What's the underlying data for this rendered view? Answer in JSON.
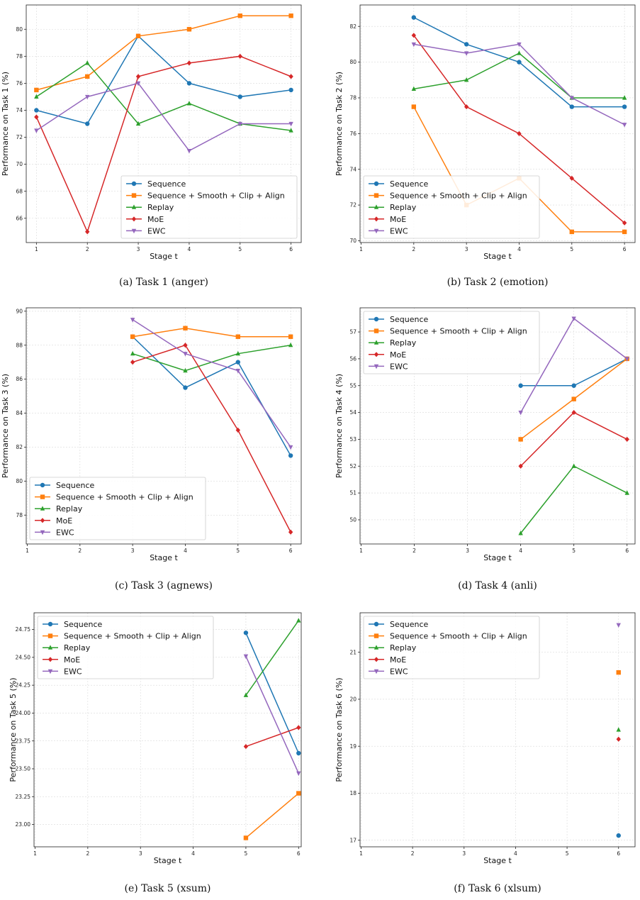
{
  "legend": [
    "Sequence",
    "Sequence + Smooth + Clip + Align",
    "Replay",
    "MoE",
    "EWC"
  ],
  "colors": [
    "#1f77b4",
    "#ff7f0e",
    "#2ca02c",
    "#d62728",
    "#9467bd"
  ],
  "markers": [
    "circle",
    "square",
    "triangle-up",
    "diamond",
    "triangle-down"
  ],
  "xlabel": "Stage t",
  "chart_data": [
    {
      "type": "line",
      "caption": "(a) Task 1 (anger)",
      "ylabel": "Performance on Task 1 (%)",
      "x": [
        1,
        2,
        3,
        4,
        5,
        6
      ],
      "xticks": [
        1,
        2,
        3,
        4,
        5,
        6
      ],
      "xlim": [
        0.8,
        6.2
      ],
      "ylim": [
        64.2,
        81.8
      ],
      "yticks": [
        66,
        68,
        70,
        72,
        74,
        76,
        78,
        80
      ],
      "ytick_labels": [
        "66",
        "68",
        "70",
        "72",
        "74",
        "76",
        "78",
        "80"
      ],
      "legend_position": "lower-right",
      "series": [
        {
          "name": "Sequence",
          "values": [
            74,
            73,
            79.5,
            76,
            75,
            75.5
          ]
        },
        {
          "name": "Sequence + Smooth + Clip + Align",
          "values": [
            75.5,
            76.5,
            79.5,
            80,
            81,
            81
          ]
        },
        {
          "name": "Replay",
          "values": [
            75,
            77.5,
            73,
            74.5,
            73,
            72.5
          ]
        },
        {
          "name": "MoE",
          "values": [
            73.5,
            65,
            76.5,
            77.5,
            78,
            76.5
          ]
        },
        {
          "name": "EWC",
          "values": [
            72.5,
            75,
            76,
            71,
            73,
            73
          ]
        }
      ]
    },
    {
      "type": "line",
      "caption": "(b) Task 2 (emotion)",
      "ylabel": "Performance on Task 2 (%)",
      "x": [
        2,
        3,
        4,
        5,
        6
      ],
      "xticks": [
        1,
        2,
        3,
        4,
        5,
        6
      ],
      "xlim": [
        0.98,
        6.2
      ],
      "ylim": [
        69.9,
        83.2
      ],
      "yticks": [
        70,
        72,
        74,
        76,
        78,
        80,
        82
      ],
      "ytick_labels": [
        "70",
        "72",
        "74",
        "76",
        "78",
        "80",
        "82"
      ],
      "legend_position": "lower-left",
      "series": [
        {
          "name": "Sequence",
          "values": [
            82.5,
            81,
            80,
            77.5,
            77.5
          ]
        },
        {
          "name": "Sequence + Smooth + Clip + Align",
          "values": [
            77.5,
            72,
            73.5,
            70.5,
            70.5
          ]
        },
        {
          "name": "Replay",
          "values": [
            78.5,
            79,
            80.5,
            78,
            78
          ]
        },
        {
          "name": "MoE",
          "values": [
            81.5,
            77.5,
            76,
            73.5,
            71
          ]
        },
        {
          "name": "EWC",
          "values": [
            81,
            80.5,
            81,
            78,
            76.5
          ]
        }
      ]
    },
    {
      "type": "line",
      "caption": "(c) Task 3 (agnews)",
      "ylabel": "Performance on Task 3 (%)",
      "x": [
        3,
        4,
        5,
        6
      ],
      "xticks": [
        1,
        2,
        3,
        4,
        5,
        6
      ],
      "xlim": [
        0.98,
        6.2
      ],
      "ylim": [
        76.3,
        90.2
      ],
      "yticks": [
        78,
        80,
        82,
        84,
        86,
        88,
        90
      ],
      "ytick_labels": [
        "78",
        "80",
        "82",
        "84",
        "86",
        "88",
        "90"
      ],
      "legend_position": "lower-left",
      "series": [
        {
          "name": "Sequence",
          "values": [
            88.5,
            85.5,
            87,
            81.5
          ]
        },
        {
          "name": "Sequence + Smooth + Clip + Align",
          "values": [
            88.5,
            89,
            88.5,
            88.5
          ]
        },
        {
          "name": "Replay",
          "values": [
            87.5,
            86.5,
            87.5,
            88
          ]
        },
        {
          "name": "MoE",
          "values": [
            87,
            88,
            83,
            77
          ]
        },
        {
          "name": "EWC",
          "values": [
            89.5,
            87.5,
            86.5,
            82
          ]
        }
      ]
    },
    {
      "type": "line",
      "caption": "(d) Task 4 (anli)",
      "ylabel": "Performance on Task 4 (%)",
      "x": [
        4,
        5,
        6
      ],
      "xticks": [
        1,
        2,
        3,
        4,
        5,
        6
      ],
      "xlim": [
        0.98,
        6.15
      ],
      "ylim": [
        49.1,
        57.9
      ],
      "yticks": [
        50,
        51,
        52,
        53,
        54,
        55,
        56,
        57
      ],
      "ytick_labels": [
        "50",
        "51",
        "52",
        "53",
        "54",
        "55",
        "56",
        "57"
      ],
      "legend_position": "upper-left",
      "series": [
        {
          "name": "Sequence",
          "values": [
            55,
            55,
            56
          ]
        },
        {
          "name": "Sequence + Smooth + Clip + Align",
          "values": [
            53,
            54.5,
            56
          ]
        },
        {
          "name": "Replay",
          "values": [
            49.5,
            52,
            51
          ]
        },
        {
          "name": "MoE",
          "values": [
            52,
            54,
            53
          ]
        },
        {
          "name": "EWC",
          "values": [
            54,
            57.5,
            56
          ]
        }
      ]
    },
    {
      "type": "line",
      "caption": "(e) Task 5 (xsum)",
      "ylabel": "Performance on Task 5 (%)",
      "x": [
        5,
        6
      ],
      "xticks": [
        1,
        2,
        3,
        4,
        5,
        6
      ],
      "xlim": [
        0.98,
        6.05
      ],
      "ylim": [
        22.8,
        24.9
      ],
      "yticks": [
        23.0,
        23.25,
        23.5,
        23.75,
        24.0,
        24.25,
        24.5,
        24.75
      ],
      "ytick_labels": [
        "23.00",
        "23.25",
        "23.50",
        "23.75",
        "24.00",
        "24.25",
        "24.50",
        "24.75"
      ],
      "legend_position": "upper-left",
      "series": [
        {
          "name": "Sequence",
          "values": [
            24.72,
            23.64
          ]
        },
        {
          "name": "Sequence + Smooth + Clip + Align",
          "values": [
            22.88,
            23.28
          ]
        },
        {
          "name": "Replay",
          "values": [
            24.16,
            24.83
          ]
        },
        {
          "name": "MoE",
          "values": [
            23.7,
            23.87
          ]
        },
        {
          "name": "EWC",
          "values": [
            24.51,
            23.46
          ]
        }
      ]
    },
    {
      "type": "scatter",
      "caption": "(f) Task 6 (xlsum)",
      "ylabel": "Performance on Task 6 (%)",
      "x": [
        6
      ],
      "xticks": [
        1,
        2,
        3,
        4,
        5,
        6
      ],
      "xlim": [
        0.98,
        6.32
      ],
      "ylim": [
        16.86,
        21.84
      ],
      "yticks": [
        17,
        18,
        19,
        20,
        21
      ],
      "ytick_labels": [
        "17",
        "18",
        "19",
        "20",
        "21"
      ],
      "legend_position": "upper-left",
      "series": [
        {
          "name": "Sequence",
          "values": [
            17.1
          ]
        },
        {
          "name": "Sequence + Smooth + Clip + Align",
          "values": [
            20.57
          ]
        },
        {
          "name": "Replay",
          "values": [
            19.35
          ]
        },
        {
          "name": "MoE",
          "values": [
            19.15
          ]
        },
        {
          "name": "EWC",
          "values": [
            21.58
          ]
        }
      ]
    }
  ]
}
